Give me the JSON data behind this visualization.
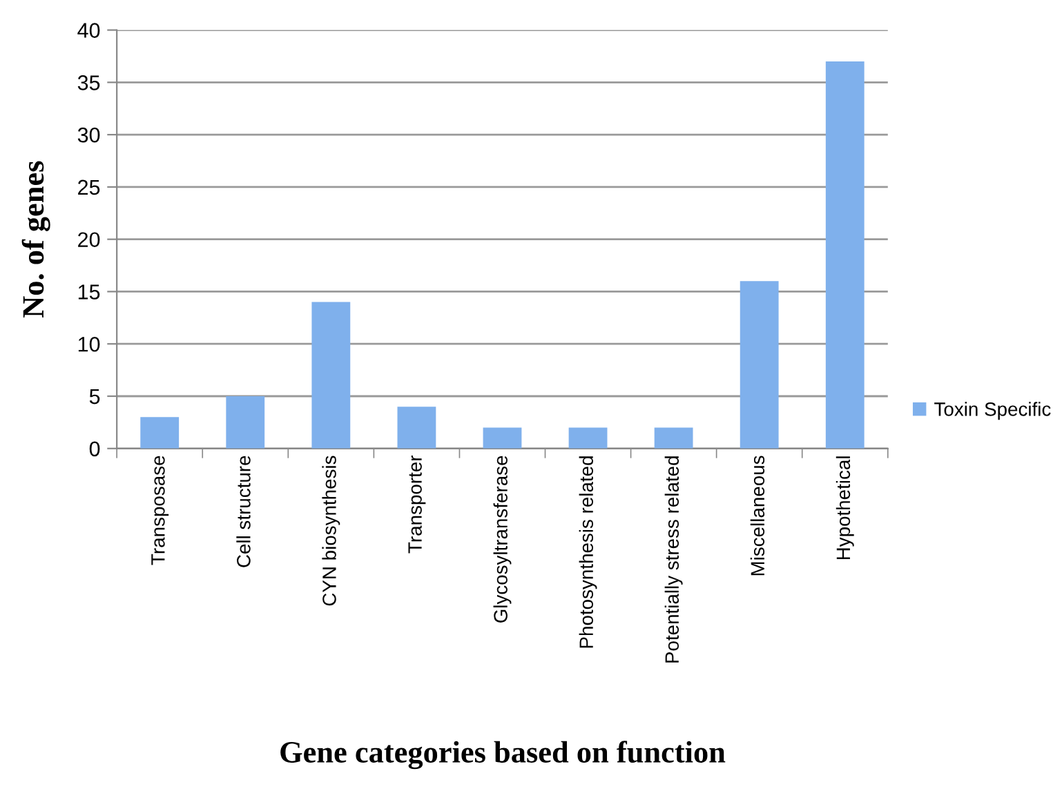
{
  "chart_data": {
    "type": "bar",
    "xlabel": "Gene categories based on function",
    "ylabel": "No. of genes",
    "categories": [
      "Transposase",
      "Cell structure",
      "CYN biosynthesis",
      "Transporter",
      "Glycosyltransferase",
      "Photosynthesis related",
      "Potentially stress related",
      "Miscellaneous",
      "Hypothetical"
    ],
    "series": [
      {
        "name": "Toxin Specific",
        "color": "#7fb0ec",
        "values": [
          3,
          5,
          14,
          4,
          2,
          2,
          2,
          16,
          37
        ]
      }
    ],
    "ylim": [
      0,
      40
    ],
    "yticks": [
      0,
      5,
      10,
      15,
      20,
      25,
      30,
      35,
      40
    ],
    "grid": "y",
    "legend": "right"
  }
}
